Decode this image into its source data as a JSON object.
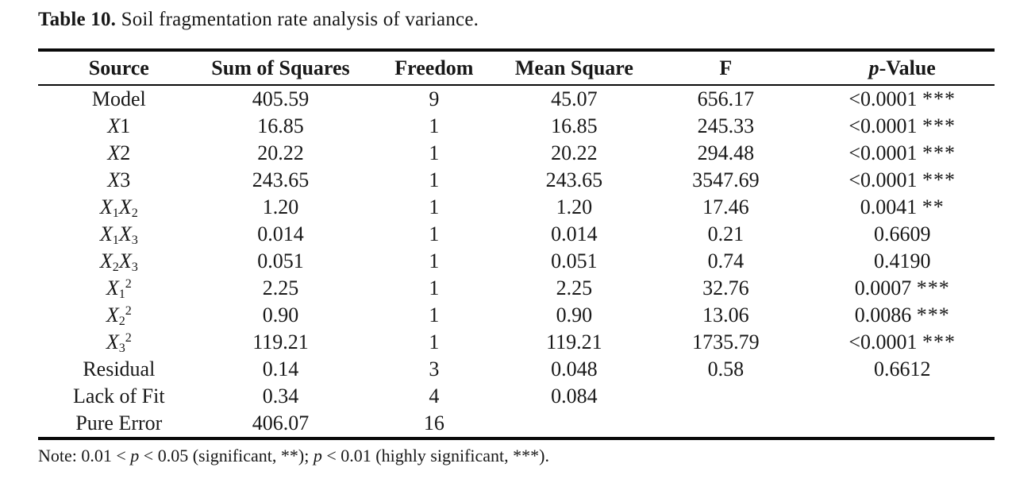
{
  "caption": {
    "label": "Table 10.",
    "text": " Soil fragmentation rate analysis of variance."
  },
  "table": {
    "column_widths_percent": [
      16.9,
      16.9,
      15.2,
      14.1,
      17.6,
      19.3
    ],
    "headers": [
      {
        "key": "source",
        "segments": [
          {
            "t": "Source"
          }
        ]
      },
      {
        "key": "sum-of-squares",
        "segments": [
          {
            "t": "Sum of Squares"
          }
        ]
      },
      {
        "key": "freedom",
        "segments": [
          {
            "t": "Freedom"
          }
        ]
      },
      {
        "key": "mean-square",
        "segments": [
          {
            "t": "Mean Square"
          }
        ]
      },
      {
        "key": "f",
        "segments": [
          {
            "t": "F"
          }
        ]
      },
      {
        "key": "p-value",
        "segments": [
          {
            "t": "p",
            "s": "i"
          },
          {
            "t": "-Value"
          }
        ]
      }
    ],
    "rows": [
      {
        "source": [
          {
            "t": "Model"
          }
        ],
        "sum_of_squares": "405.59",
        "freedom": "9",
        "mean_square": "45.07",
        "f": "656.17",
        "p": "<0.0001",
        "stars": "***"
      },
      {
        "source": [
          {
            "t": "X",
            "s": "i"
          },
          {
            "t": "1"
          }
        ],
        "sum_of_squares": "16.85",
        "freedom": "1",
        "mean_square": "16.85",
        "f": "245.33",
        "p": "<0.0001",
        "stars": "***"
      },
      {
        "source": [
          {
            "t": "X",
            "s": "i"
          },
          {
            "t": "2"
          }
        ],
        "sum_of_squares": "20.22",
        "freedom": "1",
        "mean_square": "20.22",
        "f": "294.48",
        "p": "<0.0001",
        "stars": "***"
      },
      {
        "source": [
          {
            "t": "X",
            "s": "i"
          },
          {
            "t": "3"
          }
        ],
        "sum_of_squares": "243.65",
        "freedom": "1",
        "mean_square": "243.65",
        "f": "3547.69",
        "p": "<0.0001",
        "stars": "***"
      },
      {
        "source": [
          {
            "t": "X",
            "s": "i"
          },
          {
            "t": "1",
            "s": "sub"
          },
          {
            "t": "X",
            "s": "i"
          },
          {
            "t": "2",
            "s": "sub"
          }
        ],
        "sum_of_squares": "1.20",
        "freedom": "1",
        "mean_square": "1.20",
        "f": "17.46",
        "p": "0.0041",
        "stars": "**"
      },
      {
        "source": [
          {
            "t": "X",
            "s": "i"
          },
          {
            "t": "1",
            "s": "sub"
          },
          {
            "t": "X",
            "s": "i"
          },
          {
            "t": "3",
            "s": "sub"
          }
        ],
        "sum_of_squares": "0.014",
        "freedom": "1",
        "mean_square": "0.014",
        "f": "0.21",
        "p": "0.6609",
        "stars": ""
      },
      {
        "source": [
          {
            "t": "X",
            "s": "i"
          },
          {
            "t": "2",
            "s": "sub"
          },
          {
            "t": "X",
            "s": "i"
          },
          {
            "t": "3",
            "s": "sub"
          }
        ],
        "sum_of_squares": "0.051",
        "freedom": "1",
        "mean_square": "0.051",
        "f": "0.74",
        "p": "0.4190",
        "stars": ""
      },
      {
        "source": [
          {
            "t": "X",
            "s": "i"
          },
          {
            "t": "1",
            "s": "sub"
          },
          {
            "t": "2",
            "s": "sup"
          }
        ],
        "sum_of_squares": "2.25",
        "freedom": "1",
        "mean_square": "2.25",
        "f": "32.76",
        "p": "0.0007",
        "stars": "***"
      },
      {
        "source": [
          {
            "t": "X",
            "s": "i"
          },
          {
            "t": "2",
            "s": "sub"
          },
          {
            "t": "2",
            "s": "sup"
          }
        ],
        "sum_of_squares": "0.90",
        "freedom": "1",
        "mean_square": "0.90",
        "f": "13.06",
        "p": "0.0086",
        "stars": "***"
      },
      {
        "source": [
          {
            "t": "X",
            "s": "i"
          },
          {
            "t": "3",
            "s": "sub"
          },
          {
            "t": "2",
            "s": "sup"
          }
        ],
        "sum_of_squares": "119.21",
        "freedom": "1",
        "mean_square": "119.21",
        "f": "1735.79",
        "p": "<0.0001",
        "stars": "***"
      },
      {
        "source": [
          {
            "t": "Residual"
          }
        ],
        "sum_of_squares": "0.14",
        "freedom": "3",
        "mean_square": "0.048",
        "f": "0.58",
        "p": "0.6612",
        "stars": ""
      },
      {
        "source": [
          {
            "t": "Lack of Fit"
          }
        ],
        "sum_of_squares": "0.34",
        "freedom": "4",
        "mean_square": "0.084",
        "f": "",
        "p": "",
        "stars": ""
      },
      {
        "source": [
          {
            "t": "Pure Error"
          }
        ],
        "sum_of_squares": "406.07",
        "freedom": "16",
        "mean_square": "",
        "f": "",
        "p": "",
        "stars": ""
      }
    ]
  },
  "note": {
    "segments": [
      {
        "t": "Note: 0.01 < "
      },
      {
        "t": "p",
        "s": "i"
      },
      {
        "t": " < 0.05 (significant, **); "
      },
      {
        "t": "p",
        "s": "i"
      },
      {
        "t": " < 0.01 (highly significant, ***)."
      }
    ]
  },
  "colors": {
    "text": "#181818",
    "rule": "#0a0a0a",
    "background": "#ffffff"
  }
}
